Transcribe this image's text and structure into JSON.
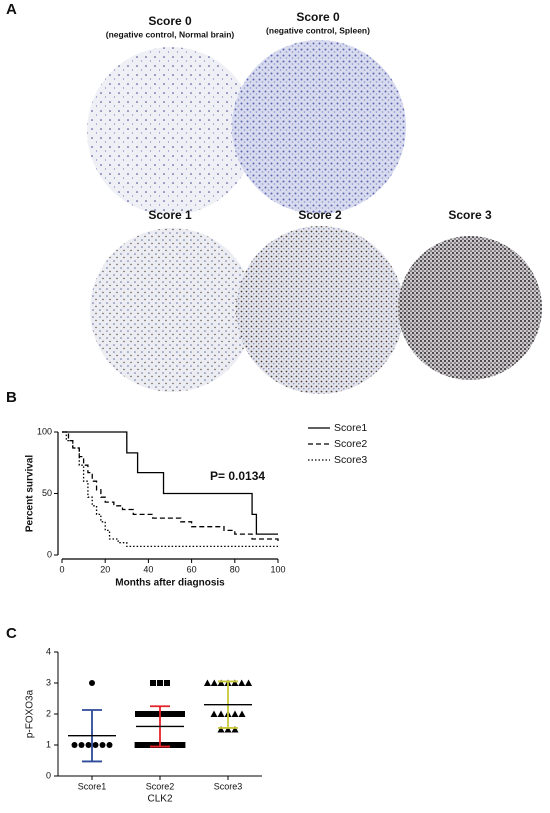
{
  "panel_a": {
    "label": "A",
    "images": [
      {
        "title": "Score 0",
        "subtitle": "(negative control, Normal brain)"
      },
      {
        "title": "Score 0",
        "subtitle": "(negative control, Spleen)"
      },
      {
        "title": "Score 1"
      },
      {
        "title": "Score 2"
      },
      {
        "title": "Score 3"
      }
    ]
  },
  "chart_data": [
    {
      "type": "line",
      "panel_label": "B",
      "step": true,
      "xlabel": "Months after diagnosis",
      "ylabel": "Percent survival",
      "annotation": "P= 0.0134",
      "xlim": [
        0,
        100
      ],
      "ylim": [
        0,
        100
      ],
      "xticks": [
        0,
        20,
        40,
        60,
        80,
        100
      ],
      "yticks": [
        0,
        50,
        100
      ],
      "series": [
        {
          "name": "Score1",
          "color": "#000000",
          "dash": "solid",
          "x": [
            0,
            30,
            35,
            47,
            88,
            90,
            100
          ],
          "values": [
            100,
            83,
            67,
            50,
            33,
            17,
            17
          ]
        },
        {
          "name": "Score2",
          "color": "#000000",
          "dash": "dashed",
          "x": [
            0,
            3,
            5,
            8,
            10,
            12,
            14,
            16,
            18,
            20,
            24,
            28,
            33,
            42,
            55,
            60,
            75,
            80,
            88,
            100
          ],
          "values": [
            100,
            93,
            87,
            80,
            73,
            67,
            60,
            53,
            47,
            43,
            40,
            37,
            33,
            30,
            27,
            23,
            20,
            17,
            13,
            10
          ]
        },
        {
          "name": "Score3",
          "color": "#000000",
          "dash": "dotted",
          "x": [
            0,
            2,
            5,
            8,
            10,
            12,
            14,
            16,
            18,
            20,
            22,
            26,
            30,
            100
          ],
          "values": [
            100,
            93,
            87,
            73,
            60,
            47,
            40,
            33,
            27,
            20,
            13,
            10,
            7,
            7
          ]
        }
      ]
    },
    {
      "type": "scatter",
      "panel_label": "C",
      "xlabel": "CLK2",
      "ylabel": "p-FOXO3a",
      "categories": [
        "Score1",
        "Score2",
        "Score3"
      ],
      "ylim": [
        0,
        4
      ],
      "yticks": [
        0,
        1,
        2,
        3,
        4
      ],
      "groups": [
        {
          "color": "#2e4a9a",
          "marker": "circle",
          "mean": 1.3,
          "sd": 0.83,
          "values": [
            1,
            1,
            1,
            1,
            1,
            1,
            3
          ]
        },
        {
          "color": "#e8202a",
          "marker": "square",
          "mean": 1.6,
          "sd": 0.65,
          "values": [
            3,
            3,
            3,
            2,
            2,
            2,
            2,
            2,
            2,
            2,
            2,
            2,
            2,
            2,
            2,
            1,
            1,
            1,
            1,
            1,
            1,
            1,
            1,
            1,
            1,
            1,
            1,
            1,
            1,
            1
          ]
        },
        {
          "color": "#c8c83a",
          "marker": "triangle",
          "mean": 2.3,
          "sd": 0.75,
          "values": [
            3,
            3,
            3,
            3,
            3,
            3,
            3,
            2,
            2,
            2,
            2,
            2,
            1.5,
            1.5,
            1.5
          ]
        }
      ]
    }
  ]
}
